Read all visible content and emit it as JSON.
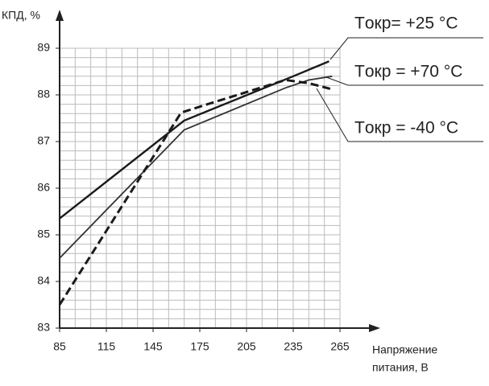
{
  "chart_data": {
    "type": "line",
    "y_label": "КПД, %",
    "x_label": [
      "Напряжение",
      "питания, В"
    ],
    "xlim": [
      85,
      265
    ],
    "ylim": [
      83,
      89
    ],
    "xticks": [
      85,
      115,
      145,
      175,
      205,
      235,
      265
    ],
    "yticks": [
      83,
      84,
      85,
      86,
      87,
      88,
      89
    ],
    "x_minor_ticks": [
      95,
      105,
      125,
      135,
      155,
      165,
      185,
      195,
      215,
      225,
      245,
      255
    ],
    "y_minor_ticks": [
      83.2,
      83.4,
      83.6,
      83.8,
      84.2,
      84.4,
      84.6,
      84.8,
      85.2,
      85.4,
      85.6,
      85.8,
      86.2,
      86.4,
      86.6,
      86.8,
      87.2,
      87.4,
      87.6,
      87.8,
      88.2,
      88.4,
      88.6,
      88.8
    ],
    "grid": true,
    "series": [
      {
        "name": "Tокр= +25 °C",
        "color": "#1a1a1a",
        "style": "solid-thick",
        "x": [
          85,
          165,
          235,
          258
        ],
        "values": [
          85.35,
          87.45,
          88.4,
          88.72
        ]
      },
      {
        "name": "Tокр = +70 °C",
        "color": "#333333",
        "style": "solid-thin",
        "x": [
          85,
          165,
          230,
          245,
          260
        ],
        "values": [
          84.5,
          87.25,
          88.15,
          88.32,
          88.4
        ]
      },
      {
        "name": "Tокр = -40 °C",
        "color": "#1a1a1a",
        "style": "dashed",
        "x": [
          85,
          163,
          180,
          230,
          245,
          260
        ],
        "values": [
          83.5,
          87.62,
          87.8,
          88.32,
          88.25,
          88.12
        ]
      }
    ]
  }
}
